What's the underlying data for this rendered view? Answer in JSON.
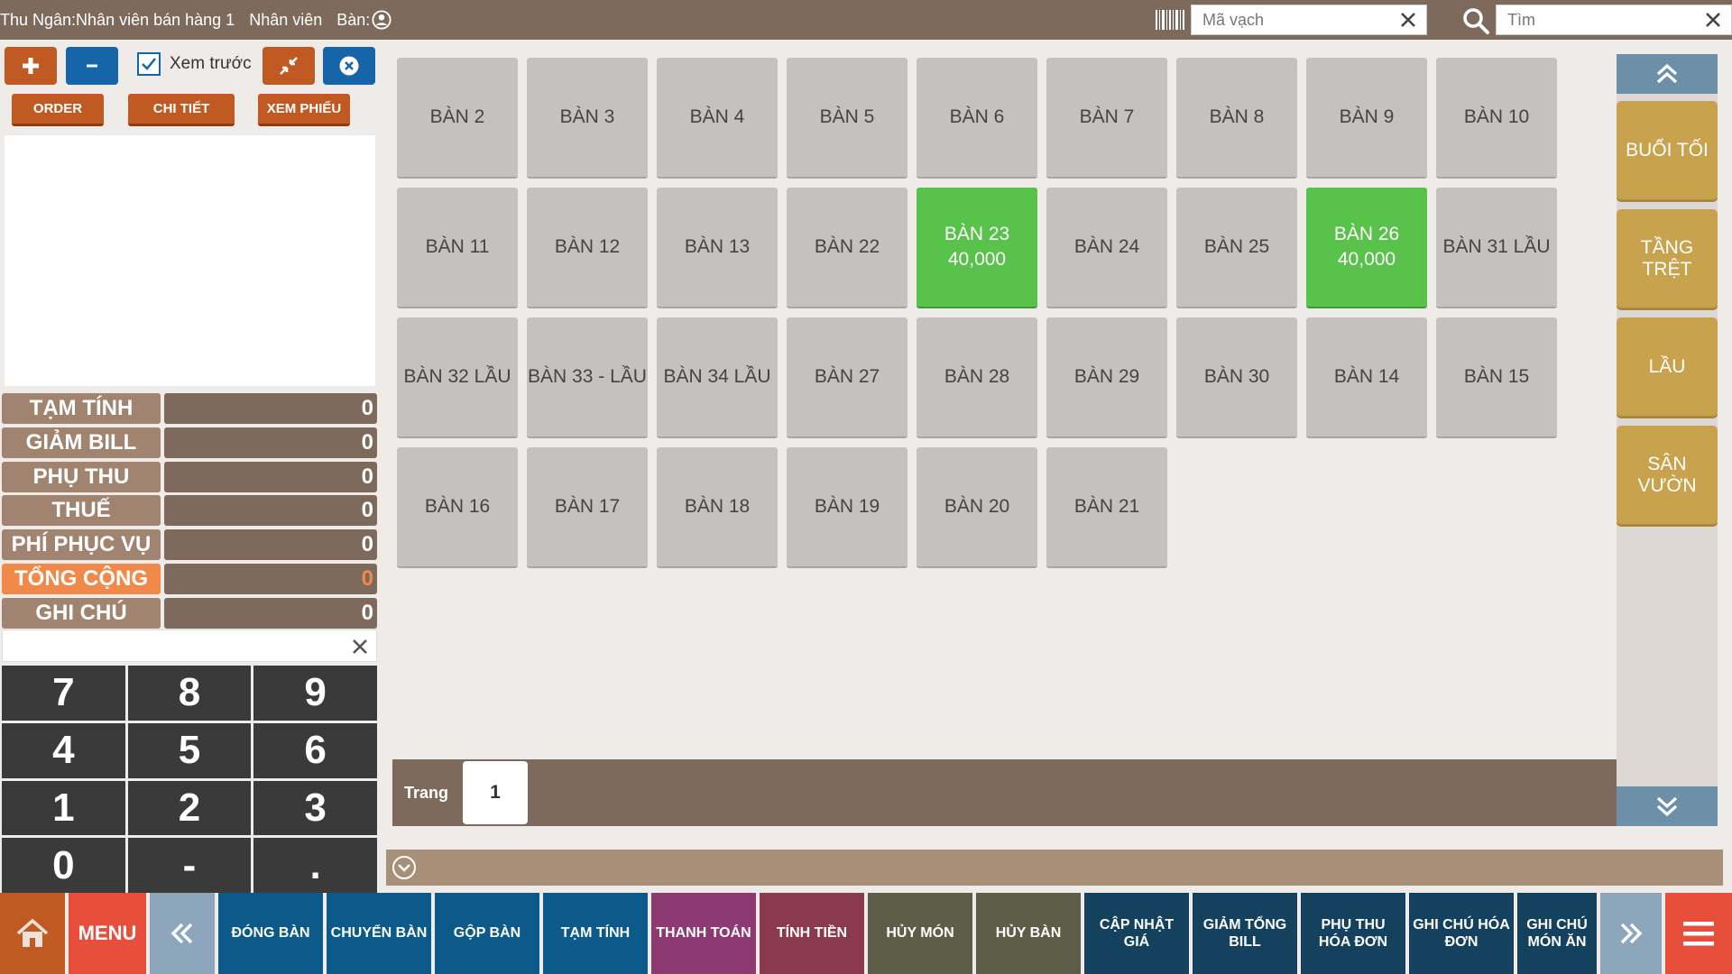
{
  "header": {
    "cashier": "Thu Ngân:Nhân viên bán hàng 1",
    "staff": "Nhân viên",
    "table": "Bàn:",
    "barcode_placeholder": "Mã vạch",
    "search_placeholder": "Tìm"
  },
  "left": {
    "preview_label": "Xem trước",
    "preview_checked": true,
    "order_label": "ORDER",
    "detail_label": "CHI TIẾT",
    "view_ticket_label": "XEM PHIẾU"
  },
  "summary": [
    {
      "label": "TẠM TÍNH",
      "value": "0"
    },
    {
      "label": "GIẢM BILL",
      "value": "0"
    },
    {
      "label": "PHỤ THU",
      "value": "0"
    },
    {
      "label": "THUẾ",
      "value": "0"
    },
    {
      "label": "PHÍ PHỤC VỤ",
      "value": "0"
    },
    {
      "label": "TỔNG CỘNG",
      "value": "0"
    },
    {
      "label": "GHI CHÚ",
      "value": "0"
    }
  ],
  "keypad": [
    "7",
    "8",
    "9",
    "4",
    "5",
    "6",
    "1",
    "2",
    "3",
    "0",
    "-",
    "."
  ],
  "tables": [
    {
      "name": "BÀN 2",
      "amount": ""
    },
    {
      "name": "BÀN 3",
      "amount": ""
    },
    {
      "name": "BÀN 4",
      "amount": ""
    },
    {
      "name": "BÀN 5",
      "amount": ""
    },
    {
      "name": "BÀN 6",
      "amount": ""
    },
    {
      "name": "BÀN 7",
      "amount": ""
    },
    {
      "name": "BÀN 8",
      "amount": ""
    },
    {
      "name": "BÀN 9",
      "amount": ""
    },
    {
      "name": "BÀN 10",
      "amount": ""
    },
    {
      "name": "BÀN 11",
      "amount": ""
    },
    {
      "name": "BÀN 12",
      "amount": ""
    },
    {
      "name": "BÀN 13",
      "amount": ""
    },
    {
      "name": "BÀN 22",
      "amount": ""
    },
    {
      "name": "BÀN 23",
      "amount": "40,000",
      "active": true
    },
    {
      "name": "BÀN 24",
      "amount": ""
    },
    {
      "name": "BÀN 25",
      "amount": ""
    },
    {
      "name": "BÀN 26",
      "amount": "40,000",
      "active": true
    },
    {
      "name": "BÀN 31 LẦU",
      "amount": ""
    },
    {
      "name": "BÀN 32 LẦU",
      "amount": ""
    },
    {
      "name": "BÀN 33 - LẦU",
      "amount": ""
    },
    {
      "name": "BÀN 34 LẦU",
      "amount": ""
    },
    {
      "name": "BÀN 27",
      "amount": ""
    },
    {
      "name": "BÀN 28",
      "amount": ""
    },
    {
      "name": "BÀN 29",
      "amount": ""
    },
    {
      "name": "BÀN 30",
      "amount": ""
    },
    {
      "name": "BÀN 14",
      "amount": ""
    },
    {
      "name": "BÀN 15",
      "amount": ""
    },
    {
      "name": "BÀN 16",
      "amount": ""
    },
    {
      "name": "BÀN 17",
      "amount": ""
    },
    {
      "name": "BÀN 18",
      "amount": ""
    },
    {
      "name": "BÀN 19",
      "amount": ""
    },
    {
      "name": "BÀN 20",
      "amount": ""
    },
    {
      "name": "BÀN 21",
      "amount": ""
    }
  ],
  "areas": [
    "BUỔI TỐI",
    "TẦNG TRỆT",
    "LẦU",
    "SÂN VƯỜN"
  ],
  "pager": {
    "label": "Trang",
    "page": "1"
  },
  "toolbar": [
    {
      "label": "",
      "icon": "home-icon",
      "color": "#c05a22"
    },
    {
      "label": "MENU",
      "color": "#e84e3c"
    },
    {
      "label": "",
      "icon": "chevrons-left-icon",
      "color": "#8da6bb"
    },
    {
      "label": "ĐÓNG BÀN",
      "color": "#0b5a8a"
    },
    {
      "label": "CHUYỂN BÀN",
      "color": "#0b5a8a"
    },
    {
      "label": "GỘP BÀN",
      "color": "#0b5a8a"
    },
    {
      "label": "TẠM TÍNH",
      "color": "#0b5a8a"
    },
    {
      "label": "THANH TOÁN",
      "color": "#8e3a72"
    },
    {
      "label": "TÍNH TIỀN",
      "color": "#8b3a4e"
    },
    {
      "label": "HỦY MÓN",
      "color": "#5e5e48"
    },
    {
      "label": "HỦY BÀN",
      "color": "#5e5e48"
    },
    {
      "label": "CẬP NHẬT GIÁ",
      "color": "#14415e"
    },
    {
      "label": "GIẢM TỔNG BILL",
      "color": "#14415e"
    },
    {
      "label": "PHỤ THU HÓA ĐƠN",
      "color": "#14415e"
    },
    {
      "label": "GHI CHÚ HÓA ĐƠN",
      "color": "#14415e"
    },
    {
      "label": "GHI CHÚ MÓN ĂN",
      "color": "#14415e"
    },
    {
      "label": "",
      "icon": "chevrons-right-icon",
      "color": "#8da6bb"
    },
    {
      "label": "",
      "icon": "hamburger-menu-icon",
      "color": "#e84e3c"
    }
  ]
}
